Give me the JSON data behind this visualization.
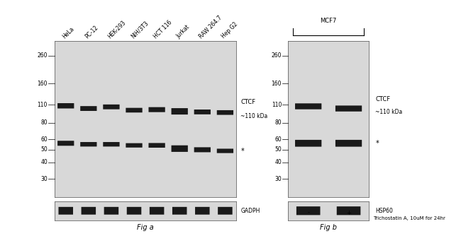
{
  "fig_width": 6.5,
  "fig_height": 3.34,
  "bg_color": "#f5f5f5",
  "panel_bg": "#d8d8d8",
  "white_bg": "#ffffff",
  "panel_a": {
    "ladder": [
      260,
      160,
      110,
      80,
      60,
      50,
      40,
      30
    ],
    "sample_labels": [
      "HeLa",
      "PC-12",
      "HEK-293",
      "NIH/3T3",
      "HCT 116",
      "Jurkat",
      "RAW 264.7",
      "Hep G2"
    ],
    "ctcf_label": "CTCF",
    "ctcf_kda": "~110 kDa",
    "gadph_label": "GADPH",
    "fig_label": "Fig a",
    "band_color": "#1a1a1a",
    "label_fontsize": 5.5,
    "tick_fontsize": 5.5
  },
  "panel_b": {
    "ladder": [
      260,
      160,
      110,
      80,
      60,
      50,
      40,
      30
    ],
    "sample_labels": [
      "-",
      "+"
    ],
    "mcf7_label": "MCF7",
    "ctcf_label": "CTCF",
    "ctcf_kda": "~110 kDa",
    "hsp60_label": "HSP60",
    "trichostatin_label": "Trichostatin A, 10uM for 24hr",
    "fig_label": "Fig b",
    "band_color": "#1a1a1a",
    "label_fontsize": 5.5,
    "tick_fontsize": 5.5
  }
}
